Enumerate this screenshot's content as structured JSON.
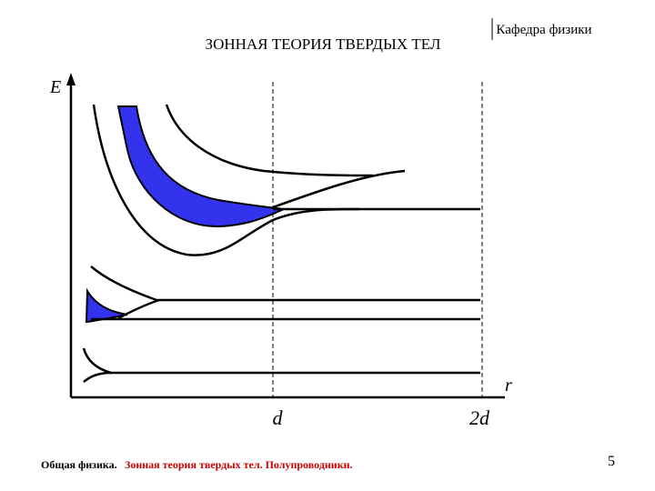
{
  "header": {
    "title": "ЗОННАЯ ТЕОРИЯ ТВЕРДЫХ ТЕЛ",
    "department": "Кафедра физики"
  },
  "diagram": {
    "y_axis_label": "E",
    "x_axis_label": "r",
    "marks": [
      "d",
      "2d"
    ]
  },
  "footer": {
    "course": "Общая физика.",
    "topic": "Зонная теория твердых тел. Полупроводники.",
    "page_number": "5"
  }
}
